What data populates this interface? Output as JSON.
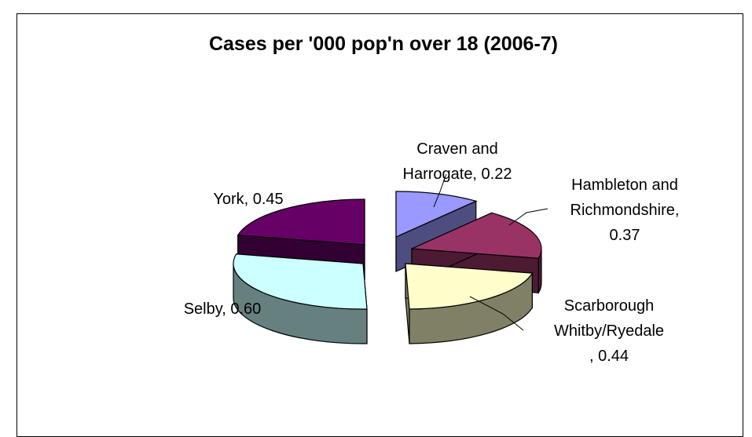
{
  "chart_data": {
    "type": "pie",
    "title": "Cases per '000 pop'n over 18 (2006-7)",
    "slices": [
      {
        "label_lines": [
          "Craven and",
          "Harrogate, 0.22"
        ],
        "name": "Craven and Harrogate",
        "value": 0.22,
        "top_color": "#9999ff",
        "side_color": "#4d4d80"
      },
      {
        "label_lines": [
          "Hambleton and",
          "Richmondshire,",
          "0.37"
        ],
        "name": "Hambleton and Richmondshire",
        "value": 0.37,
        "top_color": "#993366",
        "side_color": "#4d1a33"
      },
      {
        "label_lines": [
          "Scarborough",
          "Whitby/Ryedale",
          ", 0.44"
        ],
        "name": "Scarborough Whitby/Ryedale",
        "value": 0.44,
        "top_color": "#ffffcc",
        "side_color": "#808066"
      },
      {
        "label_lines": [
          "Selby, 0.60"
        ],
        "name": "Selby",
        "value": 0.6,
        "top_color": "#ccffff",
        "side_color": "#668080"
      },
      {
        "label_lines": [
          "York, 0.45"
        ],
        "name": "York",
        "value": 0.45,
        "top_color": "#660066",
        "side_color": "#330033"
      }
    ]
  }
}
